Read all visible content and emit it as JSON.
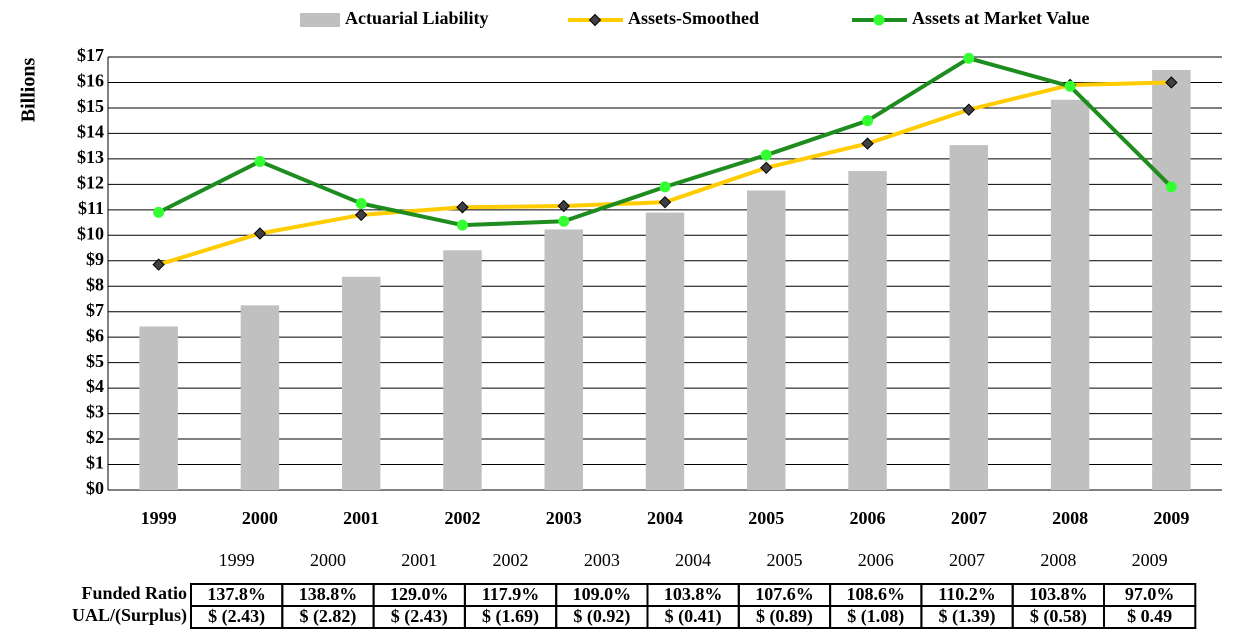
{
  "chart_data": {
    "type": "combo",
    "y_label": "Billions",
    "categories": [
      "1999",
      "2000",
      "2001",
      "2002",
      "2003",
      "2004",
      "2005",
      "2006",
      "2007",
      "2008",
      "2009"
    ],
    "series": [
      {
        "name": "Actuarial Liability",
        "type": "bar",
        "color": "#c0c0c0",
        "values": [
          6.42,
          7.25,
          8.37,
          9.41,
          10.23,
          10.89,
          11.76,
          12.52,
          13.54,
          15.32,
          16.49
        ]
      },
      {
        "name": "Assets-Smoothed",
        "type": "line",
        "color": "#ffcc00",
        "marker": "diamond",
        "marker_color": "#404040",
        "values": [
          8.85,
          10.07,
          10.8,
          11.1,
          11.15,
          11.3,
          12.65,
          13.6,
          14.93,
          15.9,
          16.0
        ]
      },
      {
        "name": "Assets at Market Value",
        "type": "line",
        "color": "#1e8c1e",
        "marker": "circle",
        "marker_color": "#33ff33",
        "values": [
          10.9,
          12.9,
          11.25,
          10.4,
          10.55,
          11.9,
          13.15,
          14.5,
          16.95,
          15.85,
          11.9
        ]
      }
    ],
    "ylim": [
      0,
      17
    ],
    "yticks": [
      {
        "value": 0,
        "label": "$0"
      },
      {
        "value": 1,
        "label": "$1"
      },
      {
        "value": 2,
        "label": "$2"
      },
      {
        "value": 3,
        "label": "$3"
      },
      {
        "value": 4,
        "label": "$4"
      },
      {
        "value": 5,
        "label": "$5"
      },
      {
        "value": 6,
        "label": "$6"
      },
      {
        "value": 7,
        "label": "$7"
      },
      {
        "value": 8,
        "label": "$8"
      },
      {
        "value": 9,
        "label": "$9"
      },
      {
        "value": 10,
        "label": "$10"
      },
      {
        "value": 11,
        "label": "$11"
      },
      {
        "value": 12,
        "label": "$12"
      },
      {
        "value": 13,
        "label": "$13"
      },
      {
        "value": 14,
        "label": "$14"
      },
      {
        "value": 15,
        "label": "$15"
      },
      {
        "value": 16,
        "label": "$16"
      },
      {
        "value": 17,
        "label": "$17"
      }
    ],
    "grid": true,
    "legend": "top"
  },
  "table": {
    "columns": [
      "1999",
      "2000",
      "2001",
      "2002",
      "2003",
      "2004",
      "2005",
      "2006",
      "2007",
      "2008",
      "2009"
    ],
    "rows": [
      {
        "label": "Funded Ratio",
        "cells": [
          "137.8%",
          "138.8%",
          "129.0%",
          "117.9%",
          "109.0%",
          "103.8%",
          "107.6%",
          "108.6%",
          "110.2%",
          "103.8%",
          "97.0%"
        ]
      },
      {
        "label": "UAL/(Surplus)",
        "cells": [
          "$ (2.43)",
          "$ (2.82)",
          "$ (2.43)",
          "$ (1.69)",
          "$ (0.92)",
          "$ (0.41)",
          "$ (0.89)",
          "$ (1.08)",
          "$ (1.39)",
          "$ (0.58)",
          "$ 0.49"
        ]
      }
    ]
  }
}
